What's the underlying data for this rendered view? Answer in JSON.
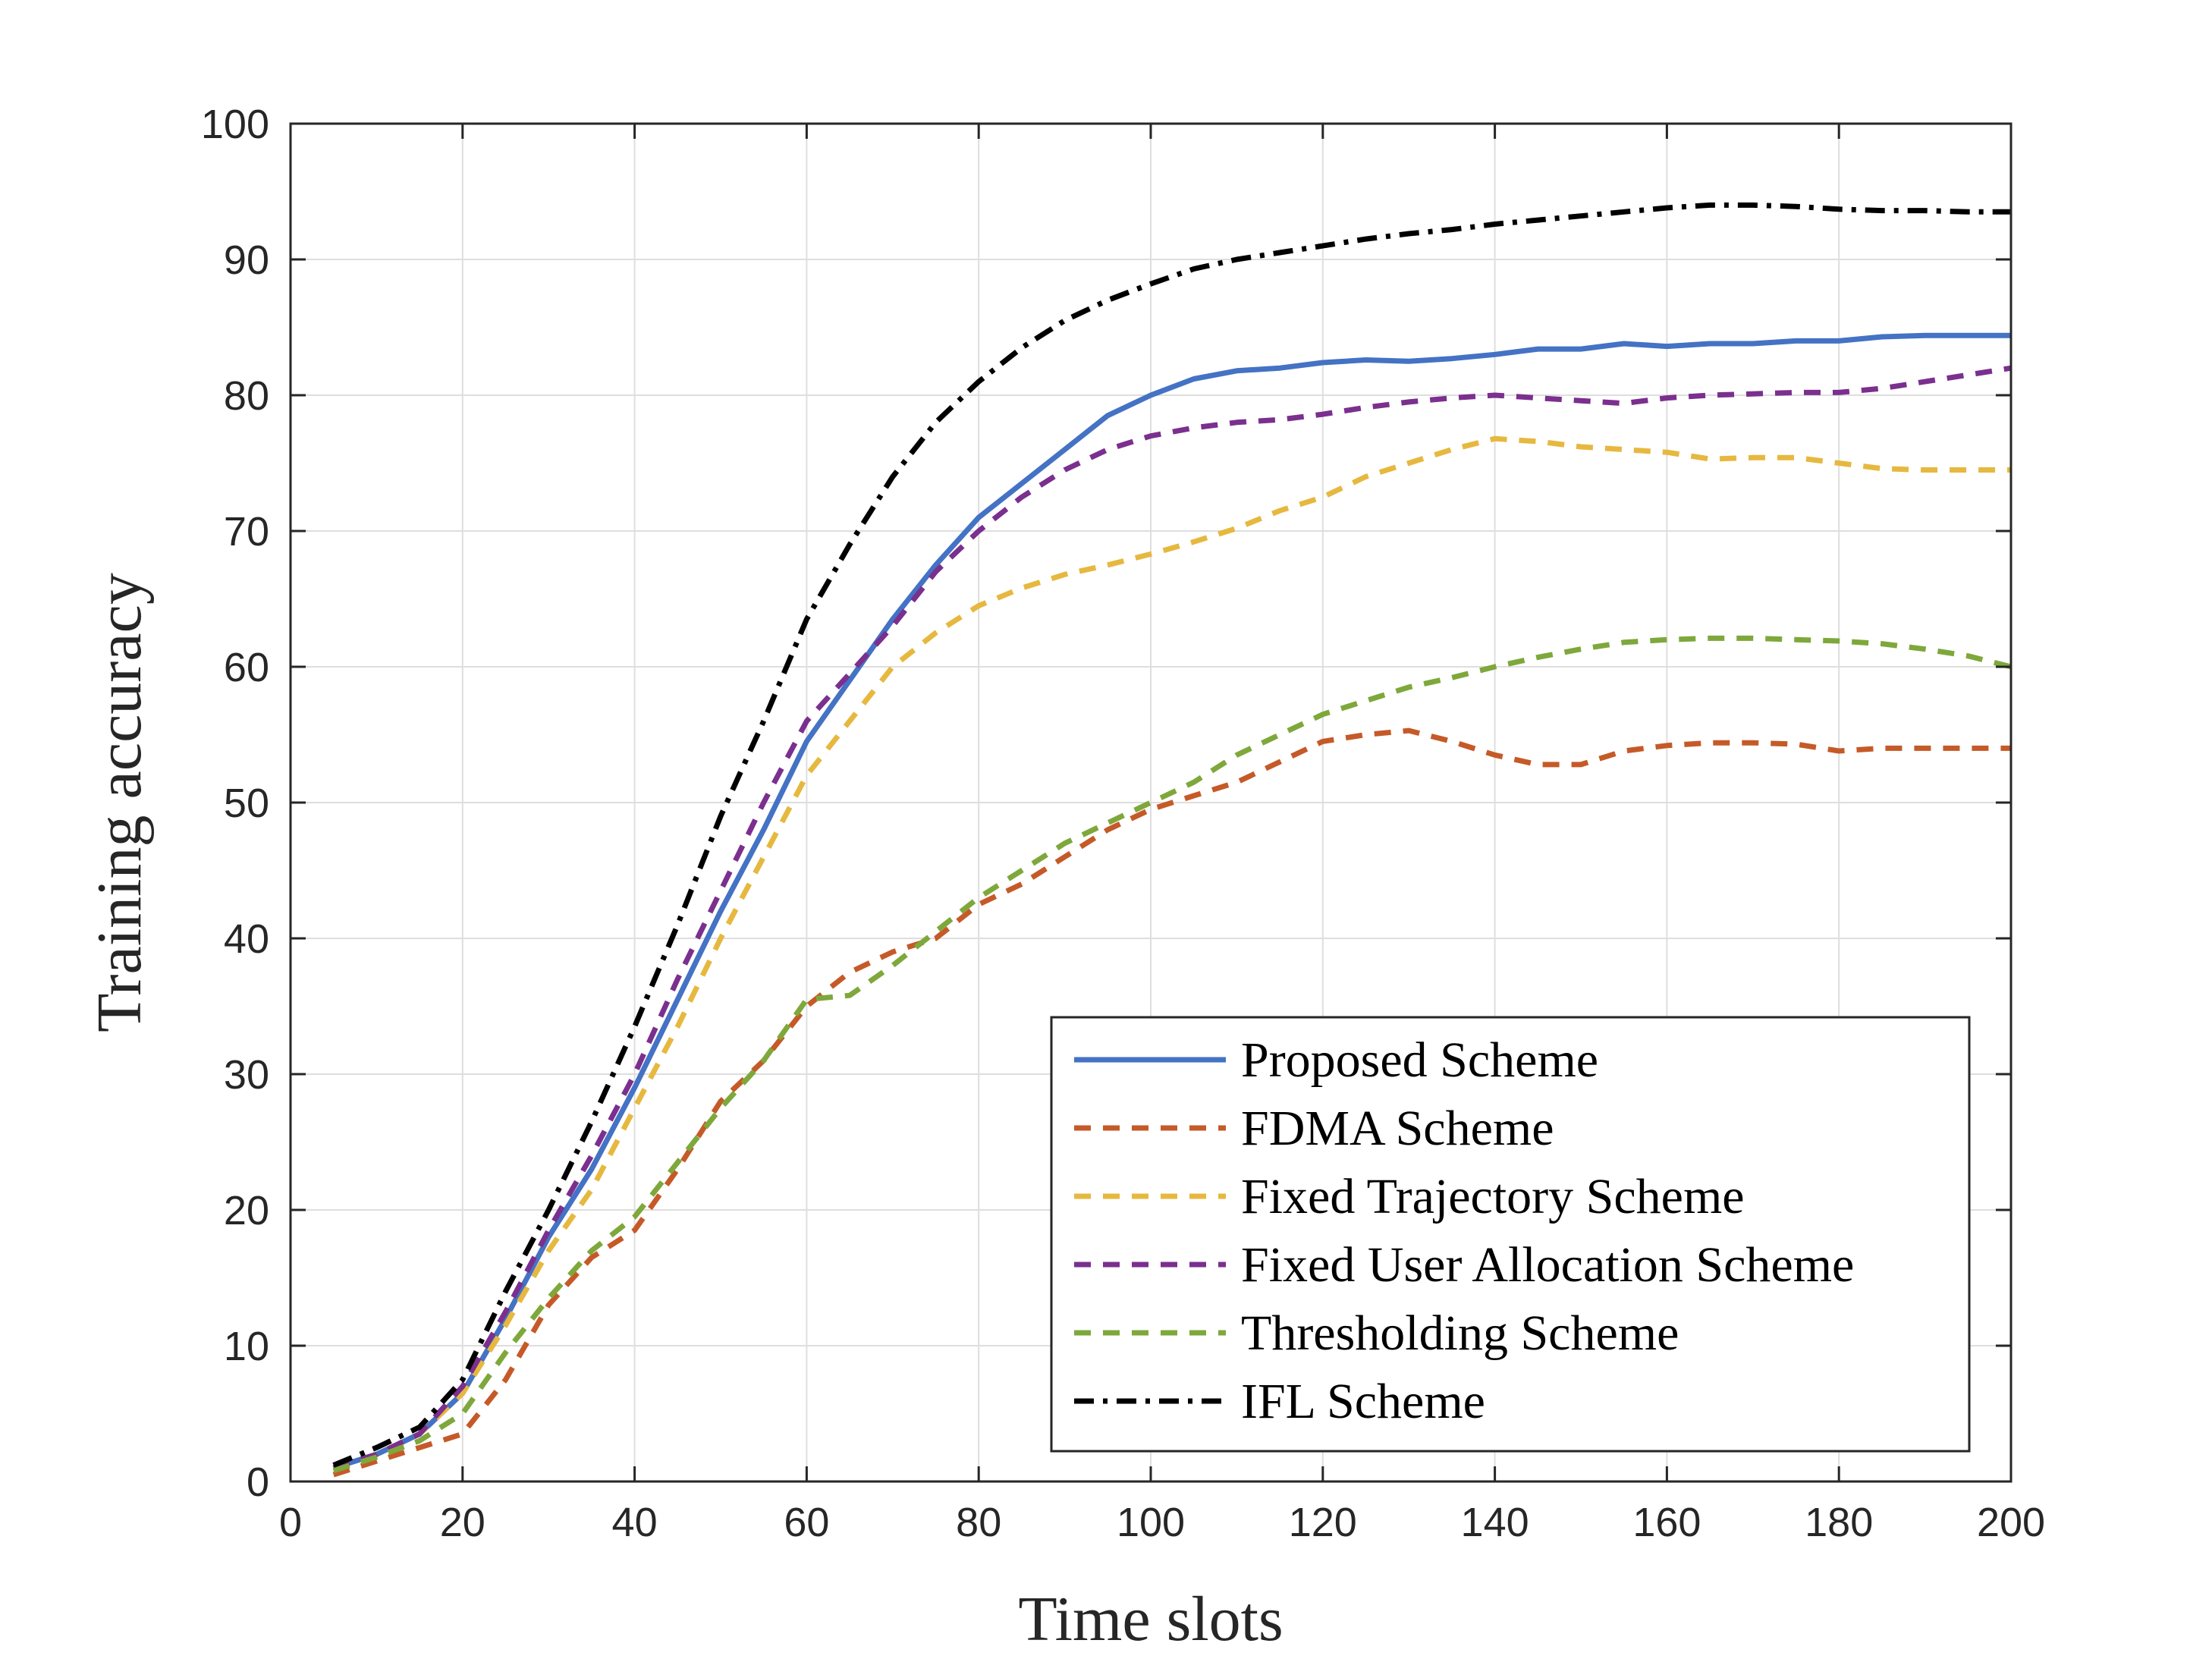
{
  "chart_data": {
    "type": "line",
    "xlabel": "Time slots",
    "ylabel": "Training accuracy",
    "xlim": [
      0,
      200
    ],
    "ylim": [
      0,
      100
    ],
    "xticks": [
      0,
      20,
      40,
      60,
      80,
      100,
      120,
      140,
      160,
      180,
      200
    ],
    "yticks": [
      0,
      10,
      20,
      30,
      40,
      50,
      60,
      70,
      80,
      90,
      100
    ],
    "grid": true,
    "legend_position": "bottom-right",
    "series": [
      {
        "name": "Proposed Scheme",
        "color": "#4472C4",
        "dash": "solid",
        "x": [
          5,
          10,
          15,
          20,
          25,
          30,
          35,
          40,
          45,
          50,
          55,
          60,
          65,
          70,
          75,
          80,
          85,
          90,
          95,
          100,
          105,
          110,
          115,
          120,
          125,
          130,
          135,
          140,
          145,
          150,
          155,
          160,
          165,
          170,
          175,
          180,
          185,
          190,
          195,
          200
        ],
        "y": [
          1,
          2,
          3.5,
          6.5,
          12,
          18,
          23,
          29,
          35.5,
          42,
          48,
          54.5,
          59,
          63.5,
          67.5,
          71,
          73.5,
          76,
          78.5,
          80,
          81.2,
          81.8,
          82,
          82.4,
          82.6,
          82.5,
          82.7,
          83,
          83.4,
          83.4,
          83.8,
          83.6,
          83.8,
          83.8,
          84,
          84,
          84.3,
          84.4,
          84.4,
          84.4
        ]
      },
      {
        "name": "FDMA Scheme",
        "color": "#C55A28",
        "dash": "dashed",
        "x": [
          5,
          10,
          15,
          20,
          25,
          30,
          35,
          40,
          45,
          50,
          55,
          60,
          65,
          70,
          75,
          80,
          85,
          90,
          95,
          100,
          105,
          110,
          115,
          120,
          125,
          130,
          135,
          140,
          145,
          150,
          155,
          160,
          165,
          170,
          175,
          180,
          185,
          190,
          195,
          200
        ],
        "y": [
          0.5,
          1.5,
          2.5,
          3.5,
          7.5,
          13,
          16.5,
          18.5,
          23,
          28,
          31,
          35,
          37.5,
          39,
          40,
          42.5,
          44,
          46,
          48,
          49.5,
          50.5,
          51.5,
          53,
          54.5,
          55,
          55.3,
          54.5,
          53.5,
          52.8,
          52.8,
          53.8,
          54.2,
          54.4,
          54.4,
          54.3,
          53.8,
          54,
          54,
          54,
          54
        ]
      },
      {
        "name": "Fixed Trajectory Scheme",
        "color": "#E6B83F",
        "dash": "dashed",
        "x": [
          5,
          10,
          15,
          20,
          25,
          30,
          35,
          40,
          45,
          50,
          55,
          60,
          65,
          70,
          75,
          80,
          85,
          90,
          95,
          100,
          105,
          110,
          115,
          120,
          125,
          130,
          135,
          140,
          145,
          150,
          155,
          160,
          165,
          170,
          175,
          180,
          185,
          190,
          195,
          200
        ],
        "y": [
          1,
          2,
          3.5,
          6.5,
          11.5,
          17,
          21.5,
          27.5,
          33.5,
          40,
          46,
          52,
          56,
          60,
          62.5,
          64.5,
          65.8,
          66.8,
          67.5,
          68.3,
          69.2,
          70.2,
          71.5,
          72.5,
          74,
          75,
          76,
          76.8,
          76.6,
          76.2,
          76,
          75.8,
          75.3,
          75.4,
          75.4,
          75,
          74.6,
          74.5,
          74.5,
          74.5
        ]
      },
      {
        "name": "Fixed User Allocation Scheme",
        "color": "#7B2F8E",
        "dash": "dashed",
        "x": [
          5,
          10,
          15,
          20,
          25,
          30,
          35,
          40,
          45,
          50,
          55,
          60,
          65,
          70,
          75,
          80,
          85,
          90,
          95,
          100,
          105,
          110,
          115,
          120,
          125,
          130,
          135,
          140,
          145,
          150,
          155,
          160,
          165,
          170,
          175,
          180,
          185,
          190,
          195,
          200
        ],
        "y": [
          1,
          2,
          3.5,
          7,
          12.5,
          18.5,
          24,
          30,
          37,
          43.5,
          50,
          56,
          59.5,
          63,
          67,
          70,
          72.5,
          74.5,
          76,
          77,
          77.6,
          78,
          78.2,
          78.6,
          79.1,
          79.5,
          79.8,
          80,
          79.8,
          79.6,
          79.4,
          79.8,
          80,
          80.1,
          80.2,
          80.2,
          80.5,
          81,
          81.5,
          82
        ]
      },
      {
        "name": "Thresholding Scheme",
        "color": "#7EA83B",
        "dash": "dashed",
        "x": [
          5,
          10,
          15,
          20,
          25,
          30,
          35,
          40,
          45,
          50,
          55,
          60,
          65,
          70,
          75,
          80,
          85,
          90,
          95,
          100,
          105,
          110,
          115,
          120,
          125,
          130,
          135,
          140,
          145,
          150,
          155,
          160,
          165,
          170,
          175,
          180,
          185,
          190,
          195,
          200
        ],
        "y": [
          0.8,
          1.8,
          3,
          5,
          9.5,
          13.5,
          17,
          19.5,
          23.5,
          27.5,
          31,
          35.5,
          35.8,
          38,
          40.5,
          43,
          45,
          47,
          48.5,
          50,
          51.5,
          53.5,
          55,
          56.5,
          57.5,
          58.5,
          59.2,
          60,
          60.7,
          61.3,
          61.8,
          62,
          62.1,
          62.1,
          62,
          61.9,
          61.7,
          61.3,
          60.8,
          60
        ]
      },
      {
        "name": "IFL Scheme",
        "color": "#000000",
        "dash": "dashdot",
        "x": [
          5,
          10,
          15,
          20,
          25,
          30,
          35,
          40,
          45,
          50,
          55,
          60,
          65,
          70,
          75,
          80,
          85,
          90,
          95,
          100,
          105,
          110,
          115,
          120,
          125,
          130,
          135,
          140,
          145,
          150,
          155,
          160,
          165,
          170,
          175,
          180,
          185,
          190,
          195,
          200
        ],
        "y": [
          1.2,
          2.5,
          4,
          7.5,
          14,
          20,
          26.5,
          33.5,
          41,
          49,
          56,
          63.5,
          69,
          74,
          78,
          81,
          83.5,
          85.5,
          87,
          88.2,
          89.3,
          90,
          90.5,
          91,
          91.5,
          91.9,
          92.2,
          92.6,
          92.9,
          93.2,
          93.5,
          93.8,
          94,
          94,
          93.9,
          93.7,
          93.6,
          93.6,
          93.5,
          93.5
        ]
      }
    ]
  }
}
